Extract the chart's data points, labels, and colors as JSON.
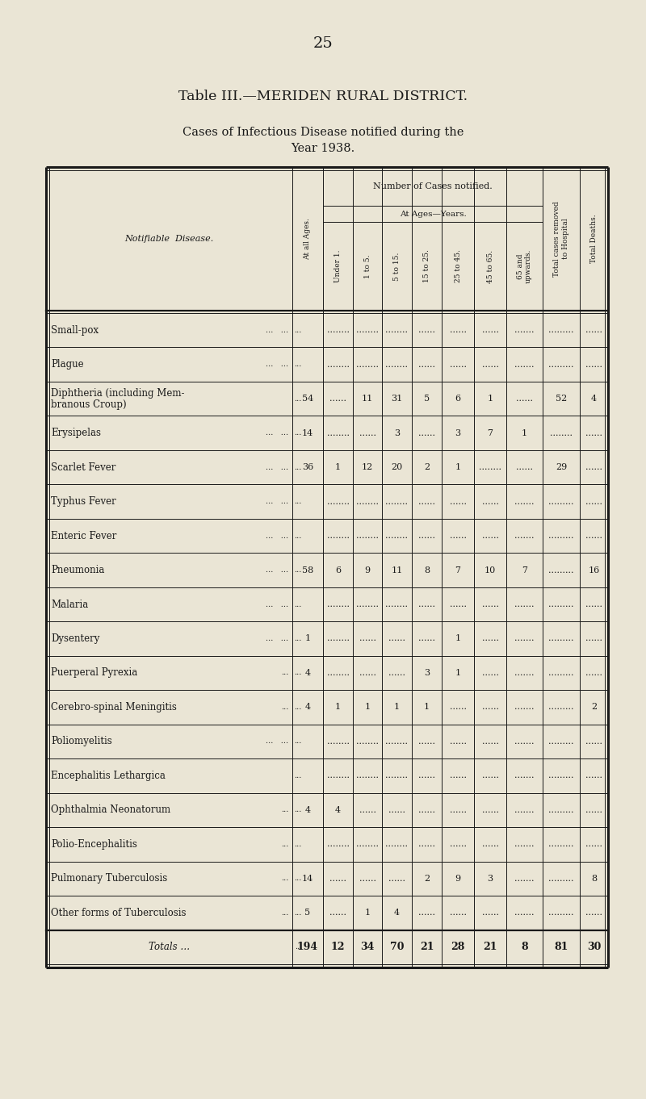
{
  "page_number": "25",
  "title1": "Table III.—MERIDEN RURAL DISTRICT.",
  "title2": "Cases of Infectious Disease notified during the",
  "title3": "Year 1938.",
  "bg_color": "#EAE5D5",
  "text_color": "#1a1a1a",
  "rows": [
    {
      "disease": "Small-pox",
      "dots": "...   ...",
      "all_ages": "",
      "under1": "........",
      "1to5": "........",
      "5to15": "........",
      "15to25": "......",
      "25to45": "......",
      "45to65": "......",
      "65plus": ".......",
      "hosp": ".........",
      "deaths": "......"
    },
    {
      "disease": "Plague",
      "dots": "...   ...",
      "all_ages": "",
      "under1": "........",
      "1to5": "........",
      "5to15": "........",
      "15to25": "......",
      "25to45": "......",
      "45to65": "......",
      "65plus": ".......",
      "hosp": ".........",
      "deaths": "......"
    },
    {
      "disease": "Diphtheria (including Mem-",
      "disease2": "branous Croup)",
      "dots": "",
      "all_ages": "54",
      "under1": "......",
      "1to5": "11",
      "5to15": "31",
      "15to25": "5",
      "25to45": "6",
      "45to65": "1",
      "65plus": "......",
      "hosp": "52",
      "deaths": "4"
    },
    {
      "disease": "Erysipelas",
      "dots": "...   ...",
      "all_ages": "14",
      "under1": "........",
      "1to5": "......",
      "5to15": "3",
      "15to25": "......",
      "25to45": "3",
      "45to65": "7",
      "65plus": "1",
      "hosp": "........",
      "deaths": "......"
    },
    {
      "disease": "Scarlet Fever",
      "dots": "...   ...",
      "all_ages": "36",
      "under1": "1",
      "1to5": "12",
      "5to15": "20",
      "15to25": "2",
      "25to45": "1",
      "45to65": "........",
      "65plus": "......",
      "hosp": "29",
      "deaths": "......"
    },
    {
      "disease": "Typhus Fever",
      "dots": "...   ...",
      "all_ages": "",
      "under1": "........",
      "1to5": "........",
      "5to15": "........",
      "15to25": "......",
      "25to45": "......",
      "45to65": "......",
      "65plus": ".......",
      "hosp": ".........",
      "deaths": "......"
    },
    {
      "disease": "Enteric Fever",
      "dots": "...   ...",
      "all_ages": "",
      "under1": "........",
      "1to5": "........",
      "5to15": "........",
      "15to25": "......",
      "25to45": "......",
      "45to65": "......",
      "65plus": ".......",
      "hosp": ".........",
      "deaths": "......"
    },
    {
      "disease": "Pneumonia",
      "dots": "...   ...",
      "all_ages": "58",
      "under1": "6",
      "1to5": "9",
      "5to15": "11",
      "15to25": "8",
      "25to45": "7",
      "45to65": "10",
      "65plus": "7",
      "hosp": ".........",
      "deaths": "16"
    },
    {
      "disease": "Malaria",
      "dots": "...   ...",
      "all_ages": "",
      "under1": "........",
      "1to5": "........",
      "5to15": "........",
      "15to25": "......",
      "25to45": "......",
      "45to65": "......",
      "65plus": ".......",
      "hosp": ".........",
      "deaths": "......"
    },
    {
      "disease": "Dysentery",
      "dots": "...   ...",
      "all_ages": "1",
      "under1": "........",
      "1to5": "......",
      "5to15": "......",
      "15to25": "......",
      "25to45": "1",
      "45to65": "......",
      "65plus": ".......",
      "hosp": ".........",
      "deaths": "......"
    },
    {
      "disease": "Puerperal Pyrexia",
      "dots": "...",
      "all_ages": "4",
      "under1": "........",
      "1to5": "......",
      "5to15": "......",
      "15to25": "3",
      "25to45": "1",
      "45to65": "......",
      "65plus": ".......",
      "hosp": ".........",
      "deaths": "......"
    },
    {
      "disease": "Cerebro-spinal Meningitis",
      "dots": "...",
      "all_ages": "4",
      "under1": "1",
      "1to5": "1",
      "5to15": "1",
      "15to25": "1",
      "25to45": "......",
      "45to65": "......",
      "65plus": ".......",
      "hosp": ".........",
      "deaths": "2"
    },
    {
      "disease": "Poliomyelitis",
      "dots": "...   ...",
      "all_ages": "",
      "under1": "........",
      "1to5": "........",
      "5to15": "........",
      "15to25": "......",
      "25to45": "......",
      "45to65": "......",
      "65plus": ".......",
      "hosp": ".........",
      "deaths": "......"
    },
    {
      "disease": "Encephalitis Lethargica",
      "dots": "",
      "all_ages": "",
      "under1": "........",
      "1to5": "........",
      "5to15": "........",
      "15to25": "......",
      "25to45": "......",
      "45to65": "......",
      "65plus": ".......",
      "hosp": ".........",
      "deaths": "......"
    },
    {
      "disease": "Ophthalmia Neonatorum",
      "dots": "...",
      "all_ages": "4",
      "under1": "4",
      "1to5": "......",
      "5to15": "......",
      "15to25": "......",
      "25to45": "......",
      "45to65": "......",
      "65plus": ".......",
      "hosp": ".........",
      "deaths": "......"
    },
    {
      "disease": "Polio-Encephalitis",
      "dots": "...",
      "all_ages": "",
      "under1": "........",
      "1to5": "........",
      "5to15": "........",
      "15to25": "......",
      "25to45": "......",
      "45to65": "......",
      "65plus": ".......",
      "hosp": ".........",
      "deaths": "......"
    },
    {
      "disease": "Pulmonary Tuberculosis",
      "dots": "...",
      "all_ages": "14",
      "under1": "......",
      "1to5": "......",
      "5to15": "......",
      "15to25": "2",
      "25to45": "9",
      "45to65": "3",
      "65plus": ".......",
      "hosp": ".........",
      "deaths": "8"
    },
    {
      "disease": "Other forms of Tuberculosis",
      "dots": "...",
      "all_ages": "5",
      "under1": "......",
      "1to5": "1",
      "5to15": "4",
      "15to25": "......",
      "25to45": "......",
      "45to65": "......",
      "65plus": ".......",
      "hosp": ".........",
      "deaths": "......"
    },
    {
      "disease": "Totals…",
      "dots": "...   ...",
      "all_ages": "194",
      "under1": "12",
      "1to5": "34",
      "5to15": "70",
      "15to25": "21",
      "25to45": "28",
      "45to65": "21",
      "65plus": "8",
      "hosp": "81",
      "deaths": "30",
      "is_total": true
    }
  ]
}
